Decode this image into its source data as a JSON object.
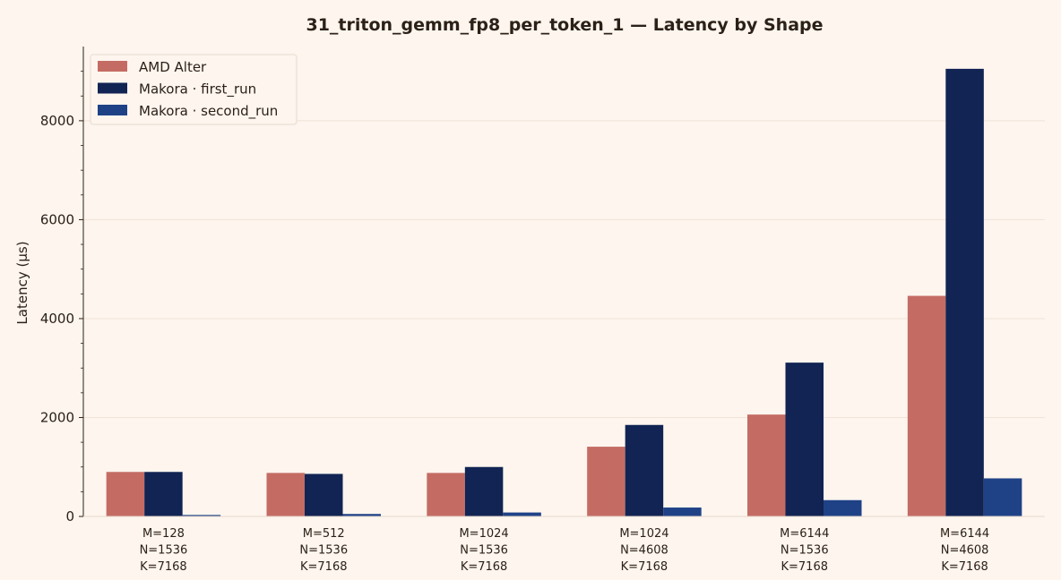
{
  "chart_data": {
    "type": "bar",
    "title": "31_triton_gemm_fp8_per_token_1  —  Latency by Shape",
    "xlabel": "",
    "ylabel": "Latency (µs)",
    "ylim": [
      0,
      9500
    ],
    "yticks": [
      0,
      2000,
      4000,
      6000,
      8000
    ],
    "grid": "horizontal",
    "legend": "top-left",
    "categories": [
      [
        "M=128",
        "N=1536",
        "K=7168"
      ],
      [
        "M=512",
        "N=1536",
        "K=7168"
      ],
      [
        "M=1024",
        "N=1536",
        "K=7168"
      ],
      [
        "M=1024",
        "N=4608",
        "K=7168"
      ],
      [
        "M=6144",
        "N=1536",
        "K=7168"
      ],
      [
        "M=6144",
        "N=4608",
        "K=7168"
      ]
    ],
    "series": [
      {
        "name": "AMD Alter",
        "color": "#c46c64",
        "values": [
          900,
          880,
          880,
          1410,
          2060,
          4460
        ]
      },
      {
        "name": "Makora · first_run",
        "color": "#112454",
        "values": [
          900,
          860,
          1000,
          1850,
          3110,
          9050
        ]
      },
      {
        "name": "Makora · second_run",
        "color": "#1f4287",
        "values": [
          30,
          50,
          80,
          180,
          330,
          770
        ]
      }
    ],
    "colors": {
      "background": "#fdf5ee",
      "grid": "#f1e4d8",
      "axis": "#2b2118"
    }
  }
}
